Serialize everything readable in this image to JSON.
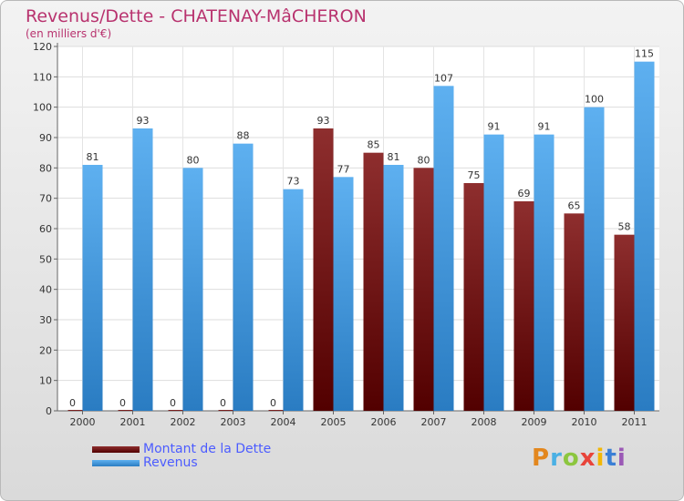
{
  "title": "Revenus/Dette - CHATENAY-MâCHERON",
  "subtitle": "(en milliers d'€)",
  "brand": "Proxiti",
  "colors": {
    "title": "#b8326e",
    "legend_text": "#4c5cff",
    "dette": "#7a1f1f",
    "revenus": "#55a9ea"
  },
  "chart_data": {
    "type": "bar",
    "categories": [
      "2000",
      "2001",
      "2002",
      "2003",
      "2004",
      "2005",
      "2006",
      "2007",
      "2008",
      "2009",
      "2010",
      "2011"
    ],
    "series": [
      {
        "name": "Montant de la Dette",
        "values": [
          0,
          0,
          0,
          0,
          0,
          93,
          85,
          80,
          75,
          69,
          65,
          58
        ]
      },
      {
        "name": "Revenus",
        "values": [
          81,
          93,
          80,
          88,
          73,
          77,
          81,
          107,
          91,
          91,
          100,
          115
        ]
      }
    ],
    "ylim": [
      0,
      120
    ],
    "yticks": [
      0,
      10,
      20,
      30,
      40,
      50,
      60,
      70,
      80,
      90,
      100,
      110,
      120
    ],
    "grid": true,
    "legend": "bottom-left"
  }
}
